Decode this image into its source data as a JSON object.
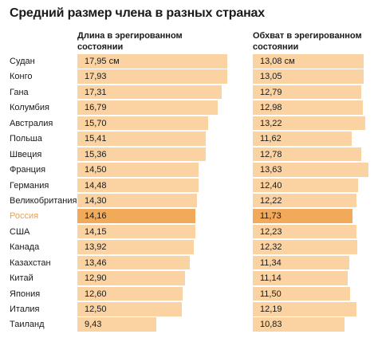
{
  "chart_data": {
    "type": "bar",
    "title": "Средний размер члена в разных странах",
    "categories": [
      "Судан",
      "Конго",
      "Гана",
      "Колумбия",
      "Австралия",
      "Польша",
      "Швеция",
      "Франция",
      "Германия",
      "Великобритания",
      "Россия",
      "США",
      "Канада",
      "Казахстан",
      "Китай",
      "Япония",
      "Италия",
      "Таиланд"
    ],
    "highlight_category": "Россия",
    "series": [
      {
        "name": "Длина в эрегированном состоянии",
        "values": [
          17.95,
          17.93,
          17.31,
          16.79,
          15.7,
          15.41,
          15.36,
          14.5,
          14.48,
          14.3,
          14.16,
          14.15,
          13.92,
          13.46,
          12.9,
          12.6,
          12.5,
          9.43
        ],
        "labels": [
          "17,95 см",
          "17,93",
          "17,31",
          "16,79",
          "15,70",
          "15,41",
          "15,36",
          "14,50",
          "14,48",
          "14,30",
          "14,16",
          "14,15",
          "13,92",
          "13,46",
          "12,90",
          "12,60",
          "12,50",
          "9,43"
        ]
      },
      {
        "name": "Обхват в эрегированном состоянии",
        "values": [
          13.08,
          13.05,
          12.79,
          12.98,
          13.22,
          11.62,
          12.78,
          13.63,
          12.4,
          12.22,
          11.73,
          12.23,
          12.32,
          11.34,
          11.14,
          11.5,
          12.19,
          10.83
        ],
        "labels": [
          "13,08 см",
          "13,05",
          "12,79",
          "12,98",
          "13,22",
          "11,62",
          "12,78",
          "13,63",
          "12,40",
          "12,22",
          "11,73",
          "12,23",
          "12,32",
          "11,34",
          "11,14",
          "11,50",
          "12,19",
          "10,83"
        ]
      }
    ]
  },
  "colors": {
    "bar": "#fbd3a3",
    "highlight_bar": "#f0aa5a",
    "highlight_text": "#e8a050",
    "text": "#1a1a1a"
  }
}
